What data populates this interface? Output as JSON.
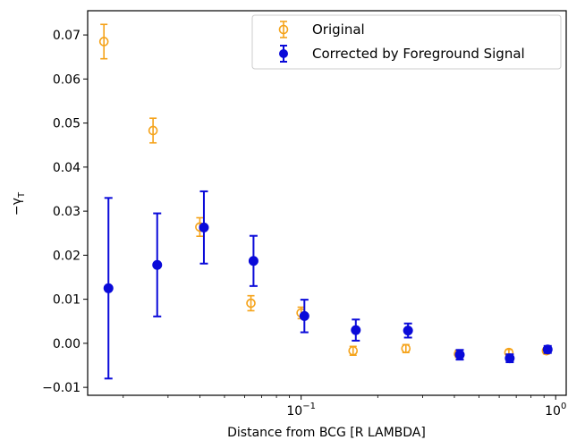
{
  "chart_data": {
    "type": "scatter",
    "title": "",
    "xlabel": "Distance from BCG [R  LAMBDA]",
    "ylabel": "−γ_T",
    "xscale": "log",
    "xlim": [
      0.0145,
      1.1
    ],
    "ylim": [
      -0.0118,
      0.0755
    ],
    "xticks": [
      {
        "value": 0.1,
        "base": "10",
        "exp": "−1"
      },
      {
        "value": 1,
        "base": "10",
        "exp": "0"
      }
    ],
    "yticks": [
      {
        "value": -0.01,
        "label": "−0.01"
      },
      {
        "value": 0.0,
        "label": "0.00"
      },
      {
        "value": 0.01,
        "label": "0.01"
      },
      {
        "value": 0.02,
        "label": "0.02"
      },
      {
        "value": 0.03,
        "label": "0.03"
      },
      {
        "value": 0.04,
        "label": "0.04"
      },
      {
        "value": 0.05,
        "label": "0.05"
      },
      {
        "value": 0.06,
        "label": "0.06"
      },
      {
        "value": 0.07,
        "label": "0.07"
      }
    ],
    "grid": false,
    "legend_position": "top-right",
    "series": [
      {
        "name": "Original",
        "color": "#f5a31a",
        "marker": "open-circle",
        "points": [
          {
            "x": 0.0168,
            "y": 0.0685,
            "err": 0.0039
          },
          {
            "x": 0.0262,
            "y": 0.0483,
            "err": 0.0028
          },
          {
            "x": 0.04,
            "y": 0.0264,
            "err": 0.0021
          },
          {
            "x": 0.0635,
            "y": 0.0091,
            "err": 0.0017
          },
          {
            "x": 0.1,
            "y": 0.0069,
            "err": 0.0013
          },
          {
            "x": 0.16,
            "y": -0.0017,
            "err": 0.001
          },
          {
            "x": 0.258,
            "y": -0.0012,
            "err": 0.0009
          },
          {
            "x": 0.415,
            "y": -0.0024,
            "err": 0.0008
          },
          {
            "x": 0.655,
            "y": -0.0021,
            "err": 0.0007
          },
          {
            "x": 0.92,
            "y": -0.0017,
            "err": 0.0007
          }
        ]
      },
      {
        "name": "Corrected by Foreground Signal",
        "color": "#0a0ad9",
        "marker": "filled-circle",
        "points": [
          {
            "x": 0.0175,
            "y": 0.0125,
            "err": 0.0205
          },
          {
            "x": 0.0272,
            "y": 0.0178,
            "err": 0.0117
          },
          {
            "x": 0.0415,
            "y": 0.0263,
            "err": 0.0082
          },
          {
            "x": 0.065,
            "y": 0.0187,
            "err": 0.0057
          },
          {
            "x": 0.103,
            "y": 0.0062,
            "err": 0.0037
          },
          {
            "x": 0.164,
            "y": 0.003,
            "err": 0.0024
          },
          {
            "x": 0.263,
            "y": 0.0029,
            "err": 0.0016
          },
          {
            "x": 0.42,
            "y": -0.0026,
            "err": 0.0011
          },
          {
            "x": 0.66,
            "y": -0.0034,
            "err": 0.0009
          },
          {
            "x": 0.93,
            "y": -0.0014,
            "err": 0.0008
          }
        ]
      }
    ]
  }
}
